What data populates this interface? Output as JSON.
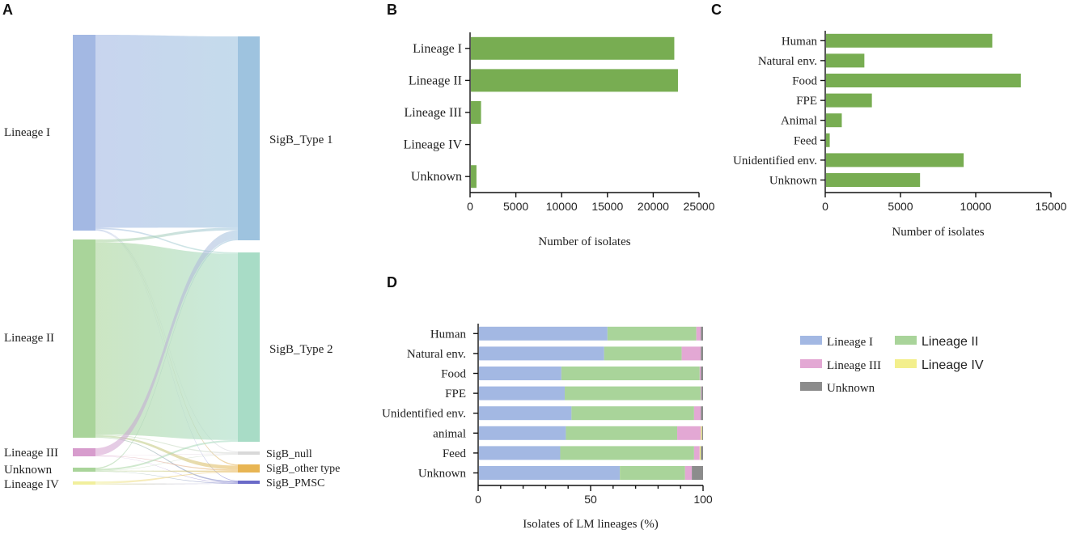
{
  "panel_labels": {
    "a": "A",
    "b": "B",
    "c": "C",
    "d": "D"
  },
  "chart_data": [
    {
      "panel": "A",
      "type": "sankey",
      "sources": [
        "Lineage I",
        "Lineage II",
        "Lineage III",
        "Unknown",
        "Lineage IV"
      ],
      "targets": [
        "SigB_Type 1",
        "SigB_Type 2",
        "SigB_null",
        "SigB_other type",
        "SigB_PMSC"
      ],
      "source_colors": [
        "#a3b8e3",
        "#a9d49a",
        "#d79ccd",
        "#a9d49a",
        "#f1ef9d"
      ],
      "target_colors": [
        "#9ec3df",
        "#a8dcc6",
        "#d9d9d9",
        "#e8b553",
        "#6a6ac8"
      ],
      "flows": [
        {
          "source": "Lineage I",
          "target": "SigB_Type 1",
          "value": 22000
        },
        {
          "source": "Lineage I",
          "target": "SigB_Type 2",
          "value": 160
        },
        {
          "source": "Lineage I",
          "target": "SigB_null",
          "value": 60
        },
        {
          "source": "Lineage I",
          "target": "SigB_other type",
          "value": 60
        },
        {
          "source": "Lineage I",
          "target": "SigB_PMSC",
          "value": 40
        },
        {
          "source": "Lineage II",
          "target": "SigB_Type 1",
          "value": 300
        },
        {
          "source": "Lineage II",
          "target": "SigB_Type 2",
          "value": 22000
        },
        {
          "source": "Lineage II",
          "target": "SigB_null",
          "value": 80
        },
        {
          "source": "Lineage II",
          "target": "SigB_other type",
          "value": 200
        },
        {
          "source": "Lineage II",
          "target": "SigB_PMSC",
          "value": 80
        },
        {
          "source": "Lineage III",
          "target": "SigB_Type 1",
          "value": 1000
        },
        {
          "source": "Lineage III",
          "target": "SigB_null",
          "value": 30
        },
        {
          "source": "Lineage III",
          "target": "SigB_other type",
          "value": 60
        },
        {
          "source": "Lineage III",
          "target": "SigB_PMSC",
          "value": 30
        },
        {
          "source": "Unknown",
          "target": "SigB_Type 1",
          "value": 150
        },
        {
          "source": "Unknown",
          "target": "SigB_Type 2",
          "value": 200
        },
        {
          "source": "Unknown",
          "target": "SigB_null",
          "value": 40
        },
        {
          "source": "Unknown",
          "target": "SigB_other type",
          "value": 80
        },
        {
          "source": "Unknown",
          "target": "SigB_PMSC",
          "value": 40
        },
        {
          "source": "Lineage IV",
          "target": "SigB_other type",
          "value": 20
        },
        {
          "source": "Lineage IV",
          "target": "SigB_PMSC",
          "value": 10
        }
      ]
    },
    {
      "panel": "B",
      "type": "bar",
      "orientation": "horizontal",
      "categories": [
        "Lineage I",
        "Lineage II",
        "Lineage III",
        "Lineage IV",
        "Unknown"
      ],
      "values": [
        22300,
        22700,
        1200,
        20,
        700
      ],
      "xlabel": "Number of isolates",
      "xlim": [
        0,
        25000
      ],
      "xticks": [
        0,
        5000,
        10000,
        15000,
        20000,
        25000
      ],
      "color": "#78ad52"
    },
    {
      "panel": "C",
      "type": "bar",
      "orientation": "horizontal",
      "categories": [
        "Human",
        "Natural env.",
        "Food",
        "FPE",
        "Animal",
        "Feed",
        "Unidentified env.",
        "Unknown"
      ],
      "values": [
        11100,
        2600,
        13000,
        3100,
        1100,
        300,
        9200,
        6300
      ],
      "xlabel": "Number of isolates",
      "xlim": [
        0,
        15000
      ],
      "xticks": [
        0,
        5000,
        10000,
        15000
      ],
      "color": "#78ad52"
    },
    {
      "panel": "D",
      "type": "bar",
      "orientation": "horizontal",
      "stacked": true,
      "categories": [
        "Human",
        "Natural env.",
        "Food",
        "FPE",
        "Unidentified env.",
        "animal",
        "Feed",
        "Unknown"
      ],
      "series": [
        {
          "name": "Lineage I",
          "color": "#a3b8e3",
          "values": [
            57.5,
            56,
            37,
            38.5,
            41.5,
            39,
            36.5,
            63
          ]
        },
        {
          "name": "Lineage II",
          "color": "#a9d49a",
          "values": [
            39.5,
            34.5,
            61.5,
            60.5,
            54.5,
            49.5,
            59.5,
            29
          ]
        },
        {
          "name": "Lineage III",
          "color": "#e3a8d4",
          "values": [
            2,
            8.5,
            0.5,
            0.3,
            3,
            10.5,
            2.5,
            3
          ]
        },
        {
          "name": "Lineage IV",
          "color": "#f3ef8c",
          "values": [
            0,
            0,
            0,
            0,
            0,
            0.5,
            0.5,
            0
          ]
        },
        {
          "name": "Unknown",
          "color": "#8c8c8c",
          "values": [
            1,
            1,
            1,
            0.7,
            1,
            0.5,
            1,
            5
          ]
        }
      ],
      "xlabel": "Isolates of LM lineages (%)",
      "xlim": [
        0,
        100
      ],
      "xticks": [
        0,
        50,
        100
      ],
      "legend_position": "right"
    }
  ]
}
